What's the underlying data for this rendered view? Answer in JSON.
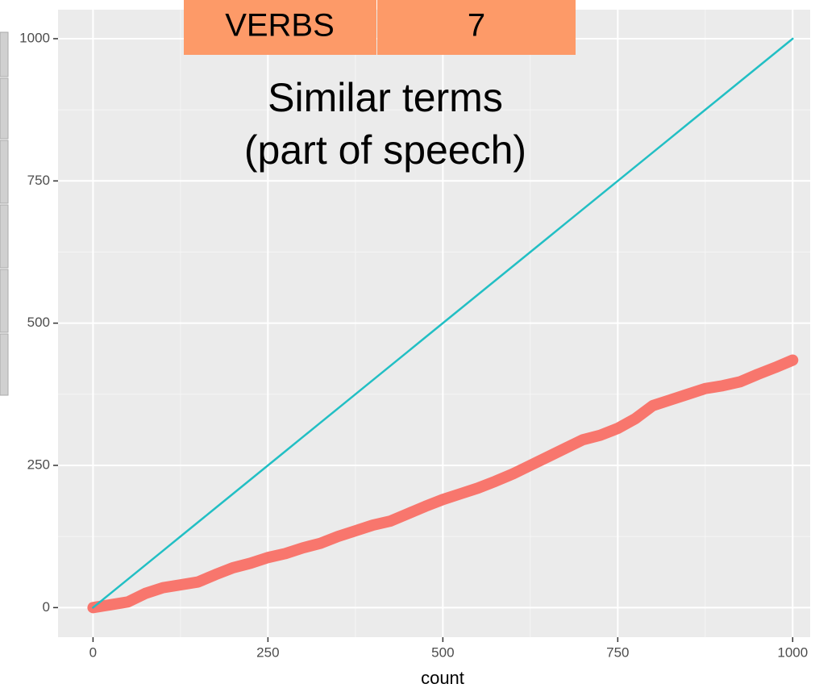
{
  "chart_data": {
    "type": "line",
    "x_label": "count",
    "x": [
      0,
      25,
      50,
      75,
      100,
      125,
      150,
      175,
      200,
      225,
      250,
      275,
      300,
      325,
      350,
      375,
      400,
      425,
      450,
      475,
      500,
      525,
      550,
      575,
      600,
      625,
      650,
      675,
      700,
      725,
      750,
      775,
      800,
      825,
      850,
      875,
      900,
      925,
      950,
      975,
      1000
    ],
    "series": [
      {
        "color": "#f8766d",
        "values": [
          0,
          5,
          10,
          25,
          35,
          40,
          45,
          58,
          70,
          78,
          88,
          95,
          105,
          113,
          125,
          135,
          145,
          152,
          165,
          178,
          190,
          200,
          210,
          222,
          235,
          250,
          265,
          280,
          295,
          303,
          315,
          332,
          355,
          365,
          375,
          385,
          390,
          397,
          410,
          422,
          435
        ]
      },
      {
        "color": "#22bfc4",
        "values": [
          0,
          25,
          50,
          75,
          100,
          125,
          150,
          175,
          200,
          225,
          250,
          275,
          300,
          325,
          350,
          375,
          400,
          425,
          450,
          475,
          500,
          525,
          550,
          575,
          600,
          625,
          650,
          675,
          700,
          725,
          750,
          775,
          800,
          825,
          850,
          875,
          900,
          925,
          950,
          975,
          1000
        ]
      }
    ],
    "xlim": [
      -50,
      1025
    ],
    "ylim": [
      -52,
      1051
    ],
    "xticks": [
      0,
      250,
      500,
      750,
      1000
    ],
    "yticks": [
      0,
      250,
      500,
      750,
      1000
    ],
    "grid": true
  },
  "overlay": {
    "cells": [
      "VERBS",
      "7"
    ],
    "caption": [
      "Similar terms",
      "(part of speech)"
    ]
  }
}
